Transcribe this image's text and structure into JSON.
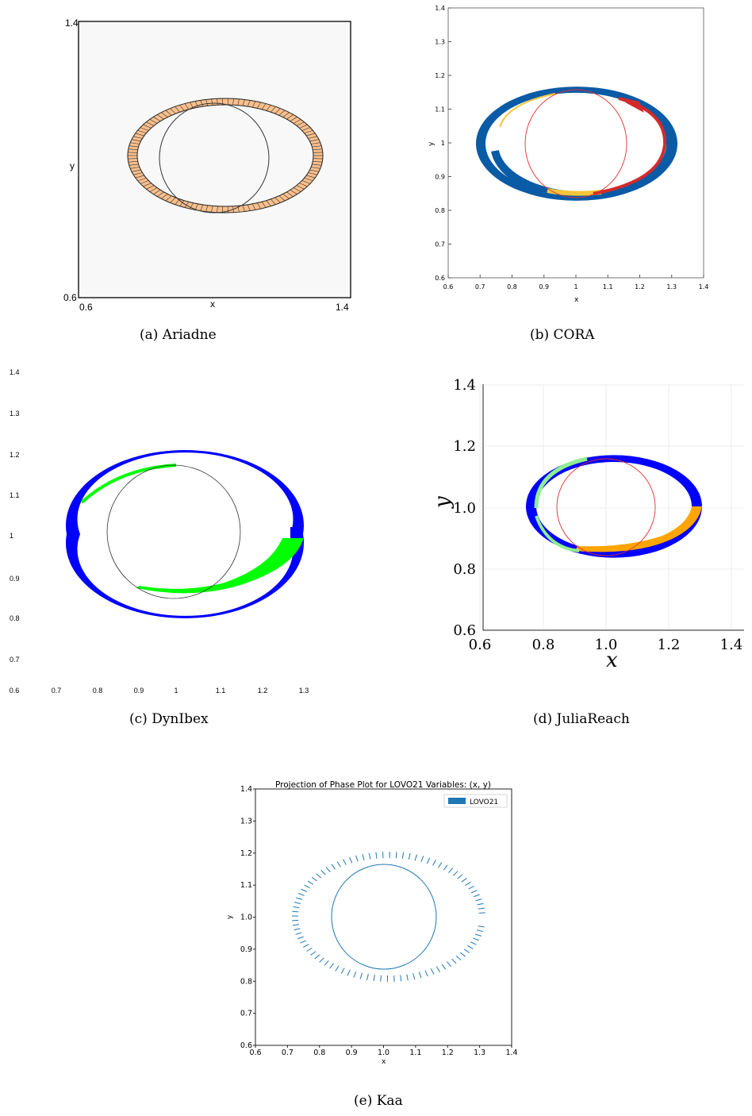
{
  "captions": {
    "a": "(a)  Ariadne",
    "b": "(b)  CORA",
    "c": "(c)  DynIbex",
    "d": "(d)  JuliaReach",
    "e": "(e)  Kaa"
  },
  "colors": {
    "ariadne_fill": "#f9bf8c",
    "cora_blue": "#0a5ba6",
    "cora_red": "#d42a2a",
    "cora_yellow": "#f7c63a",
    "dynibex_blue": "#0000ff",
    "dynibex_green": "#00ff00",
    "julia_blue": "#0000ff",
    "julia_green": "#90ee90",
    "julia_orange": "#ffa500",
    "kaa_blue": "#1f77b4",
    "circle_dark": "#333333",
    "circle_red": "#e03030"
  },
  "chart_data": [
    {
      "id": "ariadne",
      "type": "area",
      "title": "",
      "xlabel": "x",
      "ylabel": "y",
      "xlim": [
        0.6,
        1.4
      ],
      "ylim": [
        0.6,
        1.4
      ],
      "tick_labels": {
        "x_min": "0.6",
        "x_max": "1.4",
        "y_min": "0.6",
        "y_max": "1.4"
      },
      "reference_circle": {
        "cx": 1.0,
        "cy": 1.0,
        "r": 0.16
      },
      "reach_set": {
        "x_range": [
          0.75,
          1.31
        ],
        "y_range": [
          0.84,
          1.17
        ],
        "center": [
          1.03,
          1.0
        ],
        "band": 0.012
      }
    },
    {
      "id": "cora",
      "type": "area",
      "title": "",
      "xlabel": "x",
      "ylabel": "y",
      "xlim": [
        0.6,
        1.4
      ],
      "ylim": [
        0.6,
        1.4
      ],
      "xticks": [
        "0.6",
        "0.7",
        "0.8",
        "0.9",
        "1",
        "1.1",
        "1.2",
        "1.3",
        "1.4"
      ],
      "yticks": [
        "0.6",
        "0.7",
        "0.8",
        "0.9",
        "1",
        "1.1",
        "1.2",
        "1.3",
        "1.4"
      ],
      "reference_circle": {
        "cx": 1.0,
        "cy": 1.0,
        "r": 0.16
      },
      "reach_set": {
        "x_range": [
          0.75,
          1.32
        ],
        "y_range": [
          0.84,
          1.17
        ]
      }
    },
    {
      "id": "dynibex",
      "type": "area",
      "title": "",
      "xlabel": "",
      "ylabel": "",
      "xlim": [
        0.6,
        1.4
      ],
      "ylim": [
        0.6,
        1.4
      ],
      "xticks": [
        "0.6",
        "0.7",
        "0.8",
        "0.9",
        "1",
        "1.1",
        "1.2",
        "1.3"
      ],
      "yticks": [
        "0.7",
        "0.8",
        "0.9",
        "1",
        "1.1",
        "1.2",
        "1.3",
        "1.4"
      ],
      "reference_circle": {
        "cx": 1.0,
        "cy": 1.0,
        "r": 0.16
      },
      "reach_set": {
        "x_range": [
          0.75,
          1.31
        ],
        "y_range": [
          0.84,
          1.17
        ]
      }
    },
    {
      "id": "juliareach",
      "type": "area",
      "title": "",
      "xlabel": "x",
      "ylabel": "y",
      "xlim": [
        0.6,
        1.45
      ],
      "ylim": [
        0.6,
        1.4
      ],
      "xticks": [
        "0.6",
        "0.8",
        "1.0",
        "1.2",
        "1.4"
      ],
      "yticks": [
        "0.6",
        "0.8",
        "1.0",
        "1.2",
        "1.4"
      ],
      "reference_circle": {
        "cx": 1.0,
        "cy": 1.0,
        "r": 0.16
      },
      "reach_set": {
        "x_range": [
          0.75,
          1.31
        ],
        "y_range": [
          0.85,
          1.17
        ]
      }
    },
    {
      "id": "kaa",
      "type": "area",
      "title": "Projection of Phase Plot for LOVO21 Variables: (x, y)",
      "xlabel": "x",
      "ylabel": "y",
      "xlim": [
        0.6,
        1.4
      ],
      "ylim": [
        0.6,
        1.4
      ],
      "xticks": [
        "0.6",
        "0.7",
        "0.8",
        "0.9",
        "1.0",
        "1.1",
        "1.2",
        "1.3",
        "1.4"
      ],
      "yticks": [
        "0.6",
        "0.7",
        "0.8",
        "0.9",
        "1.0",
        "1.1",
        "1.2",
        "1.3",
        "1.4"
      ],
      "legend": {
        "entries": [
          "LOVO21"
        ],
        "placement": "top-right"
      },
      "reference_circle": {
        "cx": 1.0,
        "cy": 1.0,
        "r": 0.16
      },
      "reach_set": {
        "x_range": [
          0.73,
          1.36
        ],
        "y_range": [
          0.83,
          1.18
        ]
      }
    }
  ]
}
